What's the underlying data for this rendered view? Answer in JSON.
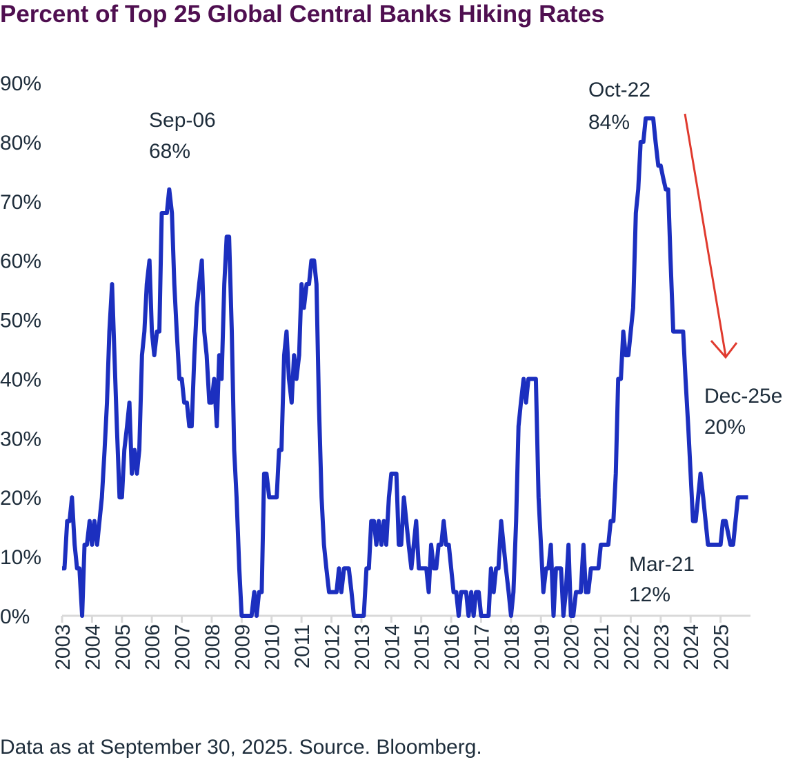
{
  "chart_data": {
    "type": "line",
    "title": "Percent of Top 25 Global Central Banks Hiking Rates",
    "footnote": "Data as at September 30, 2025. Source. Bloomberg.",
    "color": "#1c2fbf",
    "xlim": [
      2003,
      2026
    ],
    "xticks": [
      2003,
      2004,
      2005,
      2006,
      2007,
      2008,
      2009,
      2010,
      2011,
      2012,
      2013,
      2014,
      2015,
      2016,
      2017,
      2018,
      2019,
      2020,
      2021,
      2022,
      2023,
      2024,
      2025
    ],
    "ylim": [
      0,
      90
    ],
    "yticks": [
      {
        "value": 0,
        "label": "0%"
      },
      {
        "value": 10,
        "label": "10%"
      },
      {
        "value": 20,
        "label": "20%"
      },
      {
        "value": 30,
        "label": "30%"
      },
      {
        "value": 40,
        "label": "40%"
      },
      {
        "value": 50,
        "label": "50%"
      },
      {
        "value": 60,
        "label": "60%"
      },
      {
        "value": 70,
        "label": "70%"
      },
      {
        "value": 80,
        "label": "80%"
      },
      {
        "value": 90,
        "label": "90%"
      }
    ],
    "grid": false,
    "annotations": [
      [
        "Sep-06",
        "68%"
      ],
      [
        "Oct-22",
        "84%"
      ],
      [
        "Dec-25e",
        "20%"
      ],
      [
        "Mar-21",
        "12%"
      ]
    ],
    "x": [
      2003,
      2003.08,
      2003.17,
      2003.25,
      2003.33,
      2003.42,
      2003.5,
      2003.58,
      2003.67,
      2003.75,
      2003.83,
      2003.92,
      2004,
      2004.08,
      2004.17,
      2004.25,
      2004.33,
      2004.42,
      2004.5,
      2004.58,
      2004.67,
      2004.75,
      2004.83,
      2004.92,
      2005,
      2005.08,
      2005.17,
      2005.25,
      2005.33,
      2005.42,
      2005.5,
      2005.58,
      2005.67,
      2005.75,
      2005.83,
      2005.92,
      2006,
      2006.08,
      2006.17,
      2006.25,
      2006.33,
      2006.42,
      2006.5,
      2006.58,
      2006.67,
      2006.75,
      2006.83,
      2006.92,
      2007,
      2007.08,
      2007.17,
      2007.25,
      2007.33,
      2007.42,
      2007.5,
      2007.58,
      2007.67,
      2007.75,
      2007.83,
      2007.92,
      2008,
      2008.08,
      2008.17,
      2008.25,
      2008.33,
      2008.42,
      2008.5,
      2008.58,
      2008.67,
      2008.75,
      2008.83,
      2008.92,
      2009,
      2009.08,
      2009.17,
      2009.25,
      2009.33,
      2009.42,
      2009.5,
      2009.58,
      2009.67,
      2009.75,
      2009.83,
      2009.92,
      2010,
      2010.08,
      2010.17,
      2010.25,
      2010.33,
      2010.42,
      2010.5,
      2010.58,
      2010.67,
      2010.75,
      2010.83,
      2010.92,
      2011,
      2011.08,
      2011.17,
      2011.25,
      2011.33,
      2011.42,
      2011.5,
      2011.58,
      2011.67,
      2011.75,
      2011.83,
      2011.92,
      2012,
      2012.08,
      2012.17,
      2012.25,
      2012.33,
      2012.42,
      2012.5,
      2012.58,
      2012.67,
      2012.75,
      2012.83,
      2012.92,
      2013,
      2013.08,
      2013.17,
      2013.25,
      2013.33,
      2013.42,
      2013.5,
      2013.58,
      2013.67,
      2013.75,
      2013.83,
      2013.92,
      2014,
      2014.08,
      2014.17,
      2014.25,
      2014.33,
      2014.42,
      2014.5,
      2014.58,
      2014.67,
      2014.75,
      2014.83,
      2014.92,
      2015,
      2015.08,
      2015.17,
      2015.25,
      2015.33,
      2015.42,
      2015.5,
      2015.58,
      2015.67,
      2015.75,
      2015.83,
      2015.92,
      2016,
      2016.08,
      2016.17,
      2016.25,
      2016.33,
      2016.42,
      2016.5,
      2016.58,
      2016.67,
      2016.75,
      2016.83,
      2016.92,
      2017,
      2017.08,
      2017.17,
      2017.25,
      2017.33,
      2017.42,
      2017.5,
      2017.58,
      2017.67,
      2017.75,
      2017.83,
      2017.92,
      2018,
      2018.08,
      2018.17,
      2018.25,
      2018.33,
      2018.42,
      2018.5,
      2018.58,
      2018.67,
      2018.75,
      2018.83,
      2018.92,
      2019,
      2019.08,
      2019.17,
      2019.25,
      2019.33,
      2019.42,
      2019.5,
      2019.58,
      2019.67,
      2019.75,
      2019.83,
      2019.92,
      2020,
      2020.08,
      2020.17,
      2020.25,
      2020.33,
      2020.42,
      2020.5,
      2020.58,
      2020.67,
      2020.75,
      2020.83,
      2020.92,
      2021,
      2021.08,
      2021.17,
      2021.25,
      2021.33,
      2021.42,
      2021.5,
      2021.58,
      2021.67,
      2021.75,
      2021.83,
      2021.92,
      2022,
      2022.08,
      2022.17,
      2022.25,
      2022.33,
      2022.42,
      2022.5,
      2022.58,
      2022.67,
      2022.75,
      2022.83,
      2022.92,
      2023,
      2023.08,
      2023.17,
      2023.25,
      2023.33,
      2023.42,
      2023.5,
      2023.58,
      2023.67,
      2023.75,
      2023.83,
      2023.92,
      2024,
      2024.08,
      2024.17,
      2024.25,
      2024.33,
      2024.42,
      2024.5,
      2024.58,
      2024.67,
      2024.75,
      2024.83,
      2024.92,
      2025,
      2025.08,
      2025.17,
      2025.25,
      2025.33,
      2025.42,
      2025.5,
      2025.58,
      2025.67,
      2025.75,
      2025.83,
      2025.92
    ],
    "values": [
      8,
      8,
      16,
      16,
      20,
      12,
      8,
      8,
      0,
      12,
      12,
      16,
      12,
      16,
      12,
      16,
      20,
      28,
      36,
      48,
      56,
      44,
      32,
      20,
      20,
      28,
      32,
      36,
      24,
      28,
      24,
      28,
      44,
      48,
      56,
      60,
      48,
      44,
      48,
      48,
      68,
      68,
      68,
      72,
      68,
      56,
      48,
      40,
      40,
      36,
      36,
      32,
      32,
      44,
      52,
      56,
      60,
      48,
      44,
      36,
      36,
      40,
      32,
      44,
      40,
      56,
      64,
      64,
      48,
      28,
      20,
      8,
      0,
      0,
      0,
      0,
      0,
      4,
      0,
      4,
      4,
      24,
      24,
      20,
      20,
      20,
      20,
      28,
      28,
      44,
      48,
      40,
      36,
      44,
      40,
      44,
      56,
      52,
      56,
      56,
      60,
      60,
      56,
      36,
      20,
      12,
      8,
      4,
      4,
      4,
      4,
      8,
      4,
      8,
      8,
      8,
      4,
      0,
      0,
      0,
      0,
      0,
      8,
      8,
      16,
      16,
      12,
      16,
      12,
      16,
      12,
      20,
      24,
      24,
      24,
      12,
      12,
      20,
      16,
      12,
      8,
      12,
      16,
      8,
      8,
      8,
      8,
      4,
      12,
      8,
      8,
      12,
      12,
      16,
      12,
      12,
      8,
      4,
      4,
      0,
      4,
      4,
      4,
      0,
      4,
      0,
      4,
      4,
      0,
      0,
      0,
      0,
      8,
      4,
      8,
      8,
      16,
      12,
      8,
      4,
      0,
      4,
      16,
      32,
      36,
      40,
      36,
      40,
      40,
      40,
      40,
      20,
      12,
      4,
      8,
      8,
      12,
      0,
      8,
      8,
      8,
      0,
      4,
      12,
      0,
      0,
      4,
      4,
      4,
      12,
      4,
      4,
      8,
      8,
      8,
      8,
      12,
      12,
      12,
      12,
      16,
      16,
      24,
      40,
      40,
      48,
      44,
      44,
      48,
      52,
      68,
      72,
      80,
      80,
      84,
      84,
      84,
      84,
      80,
      76,
      76,
      74,
      72,
      72,
      60,
      48,
      48,
      48,
      48,
      48,
      40,
      32,
      24,
      16,
      16,
      20,
      24,
      20,
      16,
      12,
      12,
      12,
      12,
      12,
      12,
      16,
      16,
      14,
      12,
      12,
      16,
      20,
      20,
      20,
      20,
      20
    ]
  }
}
